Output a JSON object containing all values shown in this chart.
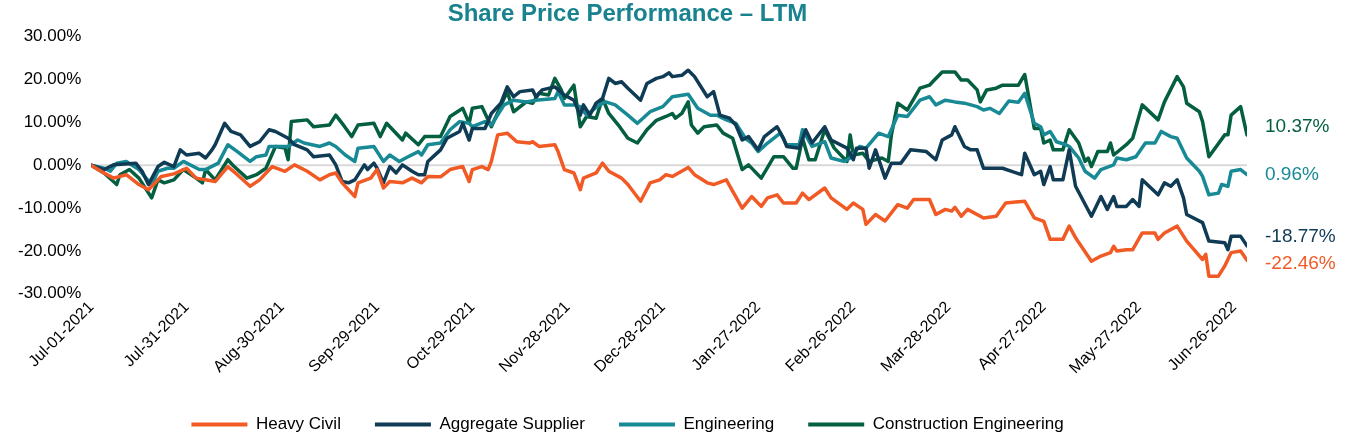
{
  "chart_data": {
    "type": "line",
    "title": "Share Price Performance – LTM",
    "xlim": [
      "2021-07-01",
      "2022-06-30"
    ],
    "xticks": [
      {
        "value": "2021-07-01",
        "label": "Jul-01-2021"
      },
      {
        "value": "2021-07-31",
        "label": "Jul-31-2021"
      },
      {
        "value": "2021-08-30",
        "label": "Aug-30-2021"
      },
      {
        "value": "2021-09-29",
        "label": "Sep-29-2021"
      },
      {
        "value": "2021-10-29",
        "label": "Oct-29-2021"
      },
      {
        "value": "2021-11-28",
        "label": "Nov-28-2021"
      },
      {
        "value": "2021-12-28",
        "label": "Dec-28-2021"
      },
      {
        "value": "2022-01-27",
        "label": "Jan-27-2022"
      },
      {
        "value": "2022-02-26",
        "label": "Feb-26-2022"
      },
      {
        "value": "2022-03-28",
        "label": "Mar-28-2022"
      },
      {
        "value": "2022-04-27",
        "label": "Apr-27-2022"
      },
      {
        "value": "2022-05-27",
        "label": "May-27-2022"
      },
      {
        "value": "2022-06-26",
        "label": "Jun-26-2022"
      }
    ],
    "ylim": [
      -30,
      30
    ],
    "yticks": [
      {
        "value": 30,
        "label": "30.00%"
      },
      {
        "value": 20,
        "label": "20.00%"
      },
      {
        "value": 10,
        "label": "10.00%"
      },
      {
        "value": 0,
        "label": "0.00%"
      },
      {
        "value": -10,
        "label": "-10.00%"
      },
      {
        "value": -20,
        "label": "-20.00%"
      },
      {
        "value": -30,
        "label": "-30.00%"
      }
    ],
    "marker": "none",
    "legend": "bottom",
    "ref_lines": [
      {
        "axis": "y",
        "value": 0,
        "color": "#d9d9d9"
      }
    ],
    "annotations": [
      {
        "text": "10.37%",
        "x": "2022-06-30",
        "y": 9.0
      },
      {
        "text": "0.96%",
        "x": "2022-06-30",
        "y": -2.2
      },
      {
        "text": "-18.77%",
        "x": "2022-06-30",
        "y": -16.6
      },
      {
        "text": "-22.46%",
        "x": "2022-06-30",
        "y": -23.1
      }
    ],
    "series": [
      {
        "name": "Heavy Civil",
        "color": "#f15a24",
        "x": [
          "2021-07-01",
          "2021-07-05",
          "2021-07-08",
          "2021-07-12",
          "2021-07-16",
          "2021-07-19",
          "2021-07-23",
          "2021-07-27",
          "2021-07-31",
          "2021-08-03",
          "2021-08-06",
          "2021-08-09",
          "2021-08-13",
          "2021-08-16",
          "2021-08-20",
          "2021-08-23",
          "2021-08-27",
          "2021-08-31",
          "2021-09-03",
          "2021-09-07",
          "2021-09-11",
          "2021-09-14",
          "2021-09-16",
          "2021-09-18",
          "2021-09-22",
          "2021-09-23",
          "2021-09-27",
          "2021-09-29",
          "2021-10-01",
          "2021-10-03",
          "2021-10-07",
          "2021-10-10",
          "2021-10-13",
          "2021-10-15",
          "2021-10-19",
          "2021-10-22",
          "2021-10-26",
          "2021-10-28",
          "2021-10-29",
          "2021-11-01",
          "2021-11-03",
          "2021-11-04",
          "2021-11-06",
          "2021-11-09",
          "2021-11-12",
          "2021-11-16",
          "2021-11-17",
          "2021-11-19",
          "2021-11-24",
          "2021-11-25",
          "2021-11-27",
          "2021-11-30",
          "2021-12-02",
          "2021-12-03",
          "2021-12-07",
          "2021-12-09",
          "2021-12-11",
          "2021-12-15",
          "2021-12-17",
          "2021-12-21",
          "2021-12-24",
          "2021-12-27",
          "2021-12-29",
          "2021-12-31",
          "2022-01-05",
          "2022-01-07",
          "2022-01-11",
          "2022-01-13",
          "2022-01-17",
          "2022-01-22",
          "2022-01-25",
          "2022-01-28",
          "2022-01-30",
          "2022-02-02",
          "2022-02-04",
          "2022-02-08",
          "2022-02-10",
          "2022-02-12",
          "2022-02-17",
          "2022-02-19",
          "2022-02-24",
          "2022-02-26",
          "2022-03-01",
          "2022-03-02",
          "2022-03-05",
          "2022-03-08",
          "2022-03-12",
          "2022-03-15",
          "2022-03-17",
          "2022-03-22",
          "2022-03-24",
          "2022-03-27",
          "2022-03-29",
          "2022-03-30",
          "2022-04-01",
          "2022-04-03",
          "2022-04-08",
          "2022-04-12",
          "2022-04-15",
          "2022-04-21",
          "2022-04-24",
          "2022-04-27",
          "2022-04-29",
          "2022-05-03",
          "2022-05-05",
          "2022-05-07",
          "2022-05-12",
          "2022-05-15",
          "2022-05-18",
          "2022-05-19",
          "2022-05-20",
          "2022-05-23",
          "2022-05-25",
          "2022-05-28",
          "2022-06-01",
          "2022-06-02",
          "2022-06-04",
          "2022-06-08",
          "2022-06-11",
          "2022-06-16",
          "2022-06-17",
          "2022-06-18",
          "2022-06-21",
          "2022-06-23",
          "2022-06-25",
          "2022-06-28",
          "2022-06-30"
        ],
        "values": [
          0,
          -1.8,
          -3.0,
          -2.2,
          -4.5,
          -5.7,
          -2.6,
          -2.0,
          -0.7,
          -3.0,
          -3.4,
          -3.8,
          -0.3,
          -2.2,
          -4.9,
          -3.4,
          -0.3,
          -1.4,
          0.1,
          -1.4,
          -3.4,
          -2.2,
          -1.8,
          -4.1,
          -7.3,
          -4.1,
          -3.0,
          -1.0,
          -5.3,
          -3.8,
          -4.1,
          -3.0,
          -4.1,
          -2.6,
          -2.7,
          -1.0,
          -0.3,
          -3.8,
          -1.0,
          -0.3,
          -1.0,
          0.9,
          7.1,
          7.5,
          5.5,
          5.2,
          5.5,
          4.4,
          4.8,
          3.2,
          -1.0,
          -1.8,
          -5.7,
          -3.0,
          -1.8,
          0.5,
          -1.4,
          -3.0,
          -4.5,
          -8.4,
          -4.1,
          -3.4,
          -2.2,
          -2.6,
          -0.5,
          -2.2,
          -4.1,
          -4.5,
          -3.4,
          -10.0,
          -7.3,
          -9.6,
          -7.6,
          -6.9,
          -8.8,
          -8.8,
          -6.5,
          -8.0,
          -5.3,
          -7.6,
          -10.3,
          -8.8,
          -10.3,
          -13.8,
          -11.5,
          -13.0,
          -9.2,
          -10.0,
          -8.0,
          -8.0,
          -11.5,
          -10.3,
          -10.7,
          -9.8,
          -11.9,
          -10.3,
          -12.3,
          -11.9,
          -8.8,
          -8.4,
          -12.3,
          -13.1,
          -17.3,
          -17.3,
          -14.2,
          -16.9,
          -22.4,
          -21.2,
          -20.4,
          -18.9,
          -20.0,
          -19.7,
          -19.7,
          -15.8,
          -15.8,
          -17.3,
          -15.8,
          -14.2,
          -17.7,
          -22.0,
          -20.8,
          -25.9,
          -25.9,
          -23.5,
          -20.4,
          -20.0,
          -22.2
        ]
      },
      {
        "name": "Aggregate Supplier",
        "color": "#0f3b55",
        "x": [
          "2021-07-01",
          "2021-07-05",
          "2021-07-08",
          "2021-07-15",
          "2021-07-17",
          "2021-07-19",
          "2021-07-22",
          "2021-07-24",
          "2021-07-27",
          "2021-07-29",
          "2021-07-31",
          "2021-08-04",
          "2021-08-06",
          "2021-08-08",
          "2021-08-09",
          "2021-08-12",
          "2021-08-14",
          "2021-08-17",
          "2021-08-20",
          "2021-08-23",
          "2021-08-26",
          "2021-08-28",
          "2021-09-01",
          "2021-09-03",
          "2021-09-07",
          "2021-09-09",
          "2021-09-14",
          "2021-09-16",
          "2021-09-18",
          "2021-09-20",
          "2021-09-22",
          "2021-09-25",
          "2021-09-26",
          "2021-09-28",
          "2021-09-29",
          "2021-10-01",
          "2021-10-03",
          "2021-10-05",
          "2021-10-07",
          "2021-10-10",
          "2021-10-12",
          "2021-10-14",
          "2021-10-15",
          "2021-10-19",
          "2021-10-21",
          "2021-10-25",
          "2021-10-26",
          "2021-10-28",
          "2021-10-29",
          "2021-11-02",
          "2021-11-04",
          "2021-11-07",
          "2021-11-09",
          "2021-11-11",
          "2021-11-13",
          "2021-11-17",
          "2021-11-18",
          "2021-11-20",
          "2021-11-24",
          "2021-11-27",
          "2021-11-30",
          "2021-12-02",
          "2021-12-03",
          "2021-12-05",
          "2021-12-07",
          "2021-12-09",
          "2021-12-11",
          "2021-12-13",
          "2021-12-15",
          "2021-12-17",
          "2021-12-21",
          "2021-12-23",
          "2021-12-26",
          "2021-12-28",
          "2021-12-30",
          "2021-12-31",
          "2022-01-03",
          "2022-01-05",
          "2022-01-07",
          "2022-01-11",
          "2022-01-13",
          "2022-01-15",
          "2022-01-18",
          "2022-01-20",
          "2022-01-22",
          "2022-01-24",
          "2022-01-27",
          "2022-01-29",
          "2022-02-02",
          "2022-02-04",
          "2022-02-05",
          "2022-02-09",
          "2022-02-11",
          "2022-02-13",
          "2022-02-17",
          "2022-02-19",
          "2022-02-24",
          "2022-02-26",
          "2022-02-27",
          "2022-03-02",
          "2022-03-03",
          "2022-03-05",
          "2022-03-08",
          "2022-03-10",
          "2022-03-13",
          "2022-03-16",
          "2022-03-21",
          "2022-03-24",
          "2022-03-26",
          "2022-03-29",
          "2022-03-30",
          "2022-04-02",
          "2022-04-04",
          "2022-04-06",
          "2022-04-08",
          "2022-04-14",
          "2022-04-20",
          "2022-04-21",
          "2022-04-24",
          "2022-04-26",
          "2022-04-27",
          "2022-04-29",
          "2022-04-30",
          "2022-05-03",
          "2022-05-05",
          "2022-05-07",
          "2022-05-12",
          "2022-05-15",
          "2022-05-17",
          "2022-05-19",
          "2022-05-20",
          "2022-05-23",
          "2022-05-25",
          "2022-05-27",
          "2022-05-28",
          "2022-06-02",
          "2022-06-04",
          "2022-06-06",
          "2022-06-08",
          "2022-06-10",
          "2022-06-11",
          "2022-06-16",
          "2022-06-18",
          "2022-06-23",
          "2022-06-24",
          "2022-06-25",
          "2022-06-28",
          "2022-06-30"
        ],
        "values": [
          0,
          -1.0,
          0.1,
          0.5,
          -1.4,
          -4.5,
          -0.3,
          0.7,
          -0.3,
          3.6,
          2.4,
          2.8,
          1.7,
          3.6,
          4.8,
          9.8,
          7.9,
          7.1,
          4.4,
          5.5,
          8.3,
          7.9,
          6.3,
          4.8,
          3.6,
          2.0,
          2.4,
          0.1,
          -3.8,
          -4.1,
          -3.4,
          0.1,
          -1.0,
          0.5,
          -0.7,
          -4.1,
          -0.3,
          -1.8,
          0.1,
          -1.4,
          -2.2,
          -2.2,
          0.9,
          3.6,
          6.3,
          7.9,
          9.8,
          5.9,
          8.6,
          8.6,
          12.1,
          14.5,
          18.3,
          16.0,
          17.2,
          17.6,
          16.0,
          17.6,
          18.3,
          16.4,
          15.2,
          11.7,
          14.1,
          11.7,
          14.5,
          15.6,
          20.3,
          19.1,
          19.5,
          18.0,
          15.2,
          19.1,
          20.3,
          20.7,
          21.6,
          20.7,
          21.0,
          22.2,
          20.7,
          16.0,
          17.2,
          11.7,
          11.0,
          9.4,
          5.9,
          6.7,
          3.6,
          6.7,
          9.0,
          6.3,
          4.4,
          4.0,
          8.3,
          5.2,
          9.0,
          5.9,
          4.0,
          1.3,
          4.0,
          4.0,
          -0.7,
          3.6,
          -3.0,
          0.5,
          0.5,
          3.6,
          3.2,
          1.3,
          5.9,
          7.1,
          9.0,
          4.4,
          3.6,
          3.6,
          -0.7,
          -0.7,
          -2.2,
          2.8,
          -2.2,
          -1.4,
          -4.5,
          -0.3,
          -3.4,
          -3.4,
          3.6,
          -4.9,
          -11.9,
          -7.3,
          -10.3,
          -7.3,
          -9.6,
          -9.6,
          -8.0,
          -9.6,
          -3.4,
          -6.9,
          -4.1,
          -4.9,
          -3.4,
          -7.6,
          -11.5,
          -13.4,
          -17.7,
          -18.1,
          -19.7,
          -16.6,
          -16.6,
          -18.8
        ]
      },
      {
        "name": "Engineering",
        "color": "#178a96",
        "x": [
          "2021-07-01",
          "2021-07-05",
          "2021-07-07",
          "2021-07-09",
          "2021-07-12",
          "2021-07-16",
          "2021-07-20",
          "2021-07-22",
          "2021-07-25",
          "2021-07-27",
          "2021-07-30",
          "2021-08-04",
          "2021-08-06",
          "2021-08-10",
          "2021-08-13",
          "2021-08-16",
          "2021-08-20",
          "2021-08-22",
          "2021-08-25",
          "2021-08-26",
          "2021-09-01",
          "2021-09-04",
          "2021-09-06",
          "2021-09-11",
          "2021-09-14",
          "2021-09-16",
          "2021-09-19",
          "2021-09-22",
          "2021-09-23",
          "2021-09-28",
          "2021-10-01",
          "2021-10-03",
          "2021-10-06",
          "2021-10-08",
          "2021-10-12",
          "2021-10-13",
          "2021-10-15",
          "2021-10-19",
          "2021-10-22",
          "2021-10-25",
          "2021-10-28",
          "2021-10-29",
          "2021-11-02",
          "2021-11-04",
          "2021-11-08",
          "2021-11-11",
          "2021-11-15",
          "2021-11-18",
          "2021-11-24",
          "2021-11-25",
          "2021-11-27",
          "2021-11-30",
          "2021-12-02",
          "2021-12-04",
          "2021-12-08",
          "2021-12-10",
          "2021-12-13",
          "2021-12-17",
          "2021-12-20",
          "2021-12-24",
          "2021-12-28",
          "2021-12-31",
          "2022-01-05",
          "2022-01-08",
          "2022-01-12",
          "2022-01-14",
          "2022-01-17",
          "2022-01-20",
          "2022-01-23",
          "2022-01-25",
          "2022-01-27",
          "2022-01-30",
          "2022-02-03",
          "2022-02-05",
          "2022-02-09",
          "2022-02-10",
          "2022-02-13",
          "2022-02-17",
          "2022-02-19",
          "2022-02-23",
          "2022-02-25",
          "2022-02-28",
          "2022-03-02",
          "2022-03-06",
          "2022-03-09",
          "2022-03-12",
          "2022-03-15",
          "2022-03-19",
          "2022-03-22",
          "2022-03-24",
          "2022-03-27",
          "2022-03-30",
          "2022-04-02",
          "2022-04-06",
          "2022-04-08",
          "2022-04-10",
          "2022-04-13",
          "2022-04-16",
          "2022-04-19",
          "2022-04-21",
          "2022-04-24",
          "2022-04-26",
          "2022-04-27",
          "2022-04-29",
          "2022-05-01",
          "2022-05-04",
          "2022-05-05",
          "2022-05-08",
          "2022-05-10",
          "2022-05-13",
          "2022-05-15",
          "2022-05-19",
          "2022-05-20",
          "2022-05-23",
          "2022-05-26",
          "2022-05-29",
          "2022-06-01",
          "2022-06-03",
          "2022-06-06",
          "2022-06-08",
          "2022-06-11",
          "2022-06-15",
          "2022-06-16",
          "2022-06-18",
          "2022-06-21",
          "2022-06-22",
          "2022-06-24",
          "2022-06-25",
          "2022-06-28",
          "2022-06-30"
        ],
        "values": [
          0,
          -0.7,
          -1.4,
          0.5,
          0.9,
          -1.0,
          -4.5,
          -1.4,
          -0.7,
          -0.7,
          0.9,
          -1.0,
          -1.0,
          0.5,
          4.8,
          3.2,
          0.9,
          2.0,
          2.4,
          4.4,
          4.4,
          5.9,
          5.2,
          4.4,
          5.2,
          4.4,
          2.4,
          0.9,
          4.0,
          4.4,
          0.9,
          2.4,
          0.9,
          1.7,
          3.2,
          2.4,
          4.8,
          5.2,
          8.3,
          10.2,
          9.8,
          9.0,
          10.2,
          9.4,
          14.1,
          15.2,
          14.8,
          15.2,
          15.6,
          17.2,
          14.1,
          14.1,
          13.7,
          11.7,
          14.1,
          14.8,
          14.1,
          11.7,
          9.8,
          12.5,
          13.7,
          16.0,
          16.6,
          13.3,
          11.7,
          11.7,
          10.6,
          9.8,
          6.3,
          5.2,
          3.2,
          5.2,
          7.5,
          4.8,
          4.8,
          8.3,
          4.4,
          5.5,
          1.7,
          0.9,
          1.7,
          4.4,
          4.0,
          7.5,
          6.7,
          11.7,
          11.4,
          15.2,
          16.0,
          14.1,
          15.2,
          14.8,
          14.5,
          13.7,
          12.9,
          13.3,
          12.1,
          15.0,
          14.7,
          16.8,
          9.8,
          9.0,
          7.1,
          7.9,
          5.5,
          4.8,
          4.4,
          1.7,
          -1.4,
          -3.0,
          -1.0,
          0.1,
          1.7,
          1.3,
          2.0,
          5.2,
          5.2,
          7.9,
          6.7,
          6.3,
          1.7,
          -1.4,
          -2.6,
          -6.9,
          -6.5,
          -4.5,
          -4.9,
          -1.4,
          -1.0,
          -2.2
        ]
      },
      {
        "name": "Construction Engineering",
        "color": "#035f3f",
        "x": [
          "2021-07-01",
          "2021-07-05",
          "2021-07-09",
          "2021-07-10",
          "2021-07-13",
          "2021-07-16",
          "2021-07-20",
          "2021-07-22",
          "2021-07-24",
          "2021-07-27",
          "2021-07-30",
          "2021-08-03",
          "2021-08-05",
          "2021-08-06",
          "2021-08-09",
          "2021-08-13",
          "2021-08-15",
          "2021-08-19",
          "2021-08-22",
          "2021-08-25",
          "2021-08-28",
          "2021-08-31",
          "2021-09-01",
          "2021-09-02",
          "2021-09-07",
          "2021-09-09",
          "2021-09-14",
          "2021-09-16",
          "2021-09-18",
          "2021-09-21",
          "2021-09-23",
          "2021-09-28",
          "2021-09-30",
          "2021-10-02",
          "2021-10-07",
          "2021-10-08",
          "2021-10-12",
          "2021-10-14",
          "2021-10-19",
          "2021-10-22",
          "2021-10-26",
          "2021-10-28",
          "2021-10-29",
          "2021-11-01",
          "2021-11-04",
          "2021-11-09",
          "2021-11-11",
          "2021-11-15",
          "2021-11-17",
          "2021-11-19",
          "2021-11-22",
          "2021-11-24",
          "2021-11-26",
          "2021-11-27",
          "2021-11-30",
          "2021-12-02",
          "2021-12-04",
          "2021-12-07",
          "2021-12-09",
          "2021-12-11",
          "2021-12-14",
          "2021-12-17",
          "2021-12-20",
          "2021-12-23",
          "2021-12-26",
          "2021-12-29",
          "2021-12-31",
          "2022-01-01",
          "2022-01-03",
          "2022-01-05",
          "2022-01-06",
          "2022-01-08",
          "2022-01-10",
          "2022-01-14",
          "2022-01-16",
          "2022-01-19",
          "2022-01-22",
          "2022-01-24",
          "2022-01-28",
          "2022-02-01",
          "2022-02-04",
          "2022-02-07",
          "2022-02-08",
          "2022-02-10",
          "2022-02-12",
          "2022-02-14",
          "2022-02-17",
          "2022-02-20",
          "2022-02-24",
          "2022-02-25",
          "2022-02-26",
          "2022-03-01",
          "2022-03-03",
          "2022-03-07",
          "2022-03-09",
          "2022-03-10",
          "2022-03-12",
          "2022-03-15",
          "2022-03-19",
          "2022-03-22",
          "2022-03-23",
          "2022-03-26",
          "2022-03-30",
          "2022-04-01",
          "2022-04-03",
          "2022-04-06",
          "2022-04-07",
          "2022-04-09",
          "2022-04-12",
          "2022-04-14",
          "2022-04-18",
          "2022-04-19",
          "2022-04-21",
          "2022-04-24",
          "2022-04-26",
          "2022-04-27",
          "2022-04-29",
          "2022-04-30",
          "2022-05-03",
          "2022-05-05",
          "2022-05-08",
          "2022-05-10",
          "2022-05-11",
          "2022-05-12",
          "2022-05-14",
          "2022-05-17",
          "2022-05-18",
          "2022-05-19",
          "2022-05-23",
          "2022-05-25",
          "2022-05-28",
          "2022-06-02",
          "2022-06-04",
          "2022-06-08",
          "2022-06-10",
          "2022-06-11",
          "2022-06-15",
          "2022-06-16",
          "2022-06-18",
          "2022-06-23",
          "2022-06-24",
          "2022-06-25",
          "2022-06-28",
          "2022-06-30"
        ],
        "values": [
          0,
          -1.8,
          -4.5,
          -2.2,
          -1.0,
          -3.0,
          -7.6,
          -3.4,
          -4.1,
          -3.4,
          -1.0,
          -3.0,
          -4.1,
          -1.0,
          -3.4,
          1.3,
          -0.3,
          -3.0,
          -2.2,
          -0.7,
          4.4,
          4.0,
          1.3,
          10.2,
          10.6,
          9.0,
          9.4,
          11.7,
          9.8,
          6.7,
          9.4,
          9.8,
          6.7,
          9.8,
          5.9,
          7.5,
          4.8,
          6.7,
          6.7,
          11.4,
          13.3,
          9.8,
          13.3,
          13.7,
          9.0,
          17.2,
          12.5,
          14.8,
          14.5,
          16.8,
          16.4,
          20.3,
          17.6,
          15.6,
          18.7,
          9.0,
          11.4,
          11.0,
          15.6,
          12.1,
          9.4,
          6.3,
          5.2,
          8.3,
          10.5,
          11.4,
          12.1,
          11.0,
          12.1,
          14.8,
          9.4,
          7.5,
          9.0,
          9.4,
          7.5,
          6.3,
          -1.0,
          0.1,
          -3.0,
          2.0,
          2.0,
          -0.7,
          -0.7,
          6.3,
          1.3,
          1.3,
          8.3,
          4.0,
          0.9,
          7.1,
          2.4,
          2.8,
          0.9,
          1.7,
          0.9,
          7.1,
          14.5,
          12.9,
          18.0,
          18.7,
          19.5,
          21.8,
          21.8,
          19.9,
          19.9,
          17.6,
          14.8,
          17.6,
          18.0,
          18.7,
          18.7,
          18.7,
          21.2,
          8.6,
          8.6,
          5.2,
          5.9,
          3.6,
          3.6,
          8.3,
          5.2,
          0.9,
          1.7,
          -0.3,
          3.2,
          3.2,
          5.2,
          2.4,
          4.8,
          6.3,
          14.1,
          10.6,
          14.8,
          20.7,
          18.3,
          14.5,
          12.5,
          10.2,
          2.0,
          7.1,
          7.1,
          11.7,
          13.7,
          7.1
        ]
      }
    ]
  }
}
